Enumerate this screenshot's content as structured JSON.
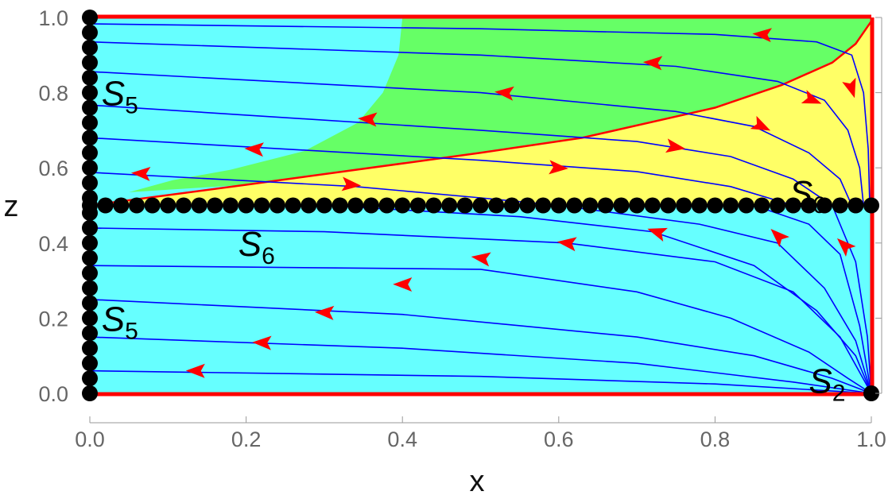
{
  "chart_data": {
    "type": "streamplot",
    "xlabel": "x",
    "ylabel": "z",
    "xlim": [
      0,
      1
    ],
    "ylim": [
      0,
      1
    ],
    "xticks": [
      "0.0",
      "0.2",
      "0.4",
      "0.6",
      "0.8",
      "1.0"
    ],
    "yticks": [
      "0.0",
      "0.2",
      "0.4",
      "0.6",
      "0.8",
      "1.0"
    ],
    "colors": {
      "background": "#66ffff",
      "green": "#66ff66",
      "yellow": "#ffff66",
      "separatrix": "#ff0000",
      "stream": "#0000ff",
      "arrow": "#ff0000",
      "points": "#000000"
    },
    "regions": {
      "separatrix_curve": [
        [
          0,
          0.5
        ],
        [
          0.2,
          0.555
        ],
        [
          0.5,
          0.64
        ],
        [
          0.63,
          0.68
        ],
        [
          0.8,
          0.76
        ],
        [
          0.885,
          0.82
        ],
        [
          0.95,
          0.88
        ],
        [
          0.98,
          0.93
        ],
        [
          1,
          0.99
        ]
      ],
      "green_left_boundary": [
        [
          0.4,
          1.0
        ],
        [
          0.395,
          0.9
        ],
        [
          0.375,
          0.8
        ],
        [
          0.343,
          0.72
        ],
        [
          0.275,
          0.645
        ],
        [
          0.18,
          0.595
        ],
        [
          0.106,
          0.567
        ],
        [
          0.05,
          0.535
        ]
      ]
    },
    "streamlines": [
      [
        [
          0,
          0.983
        ],
        [
          0.5,
          0.97
        ],
        [
          0.8,
          0.955
        ],
        [
          0.93,
          0.935
        ],
        [
          0.975,
          0.9
        ],
        [
          0.99,
          0.8
        ],
        [
          0.996,
          0.65
        ],
        [
          0.998,
          0.5
        ]
      ],
      [
        [
          0,
          0.935
        ],
        [
          0.5,
          0.9
        ],
        [
          0.75,
          0.87
        ],
        [
          0.88,
          0.83
        ],
        [
          0.94,
          0.78
        ],
        [
          0.97,
          0.7
        ],
        [
          0.985,
          0.6
        ],
        [
          0.99,
          0.5
        ]
      ],
      [
        [
          0,
          0.856
        ],
        [
          0.5,
          0.8
        ],
        [
          0.75,
          0.75
        ],
        [
          0.85,
          0.71
        ],
        [
          0.92,
          0.64
        ],
        [
          0.96,
          0.57
        ],
        [
          0.975,
          0.5
        ]
      ],
      [
        [
          0,
          0.767
        ],
        [
          0.5,
          0.7
        ],
        [
          0.7,
          0.67
        ],
        [
          0.82,
          0.63
        ],
        [
          0.9,
          0.57
        ],
        [
          0.95,
          0.5
        ]
      ],
      [
        [
          0,
          0.68
        ],
        [
          0.5,
          0.62
        ],
        [
          0.7,
          0.59
        ],
        [
          0.82,
          0.55
        ],
        [
          0.9,
          0.5
        ]
      ],
      [
        [
          0,
          0.588
        ],
        [
          0.34,
          0.55
        ],
        [
          0.5,
          0.52
        ],
        [
          0.6,
          0.5
        ]
      ],
      [
        [
          0,
          0.44
        ],
        [
          0.3,
          0.43
        ],
        [
          0.61,
          0.4
        ],
        [
          0.8,
          0.35
        ],
        [
          0.9,
          0.27
        ],
        [
          0.96,
          0.15
        ],
        [
          1,
          0
        ]
      ],
      [
        [
          0,
          0.34
        ],
        [
          0.5,
          0.33
        ],
        [
          0.7,
          0.27
        ],
        [
          0.82,
          0.2
        ],
        [
          0.92,
          0.11
        ],
        [
          0.97,
          0.04
        ],
        [
          1,
          0
        ]
      ],
      [
        [
          0,
          0.25
        ],
        [
          0.4,
          0.21
        ],
        [
          0.7,
          0.15
        ],
        [
          0.85,
          0.1
        ],
        [
          0.95,
          0.04
        ],
        [
          1,
          0
        ]
      ],
      [
        [
          0,
          0.15
        ],
        [
          0.4,
          0.12
        ],
        [
          0.7,
          0.08
        ],
        [
          0.9,
          0.03
        ],
        [
          1,
          0
        ]
      ],
      [
        [
          0,
          0.06
        ],
        [
          0.5,
          0.045
        ],
        [
          0.8,
          0.025
        ],
        [
          1,
          0
        ]
      ],
      [
        [
          0.3,
          0.5
        ],
        [
          0.55,
          0.47
        ],
        [
          0.72,
          0.43
        ],
        [
          0.85,
          0.34
        ],
        [
          0.93,
          0.22
        ],
        [
          0.98,
          0.1
        ],
        [
          1,
          0
        ]
      ],
      [
        [
          0.6,
          0.5
        ],
        [
          0.78,
          0.45
        ],
        [
          0.88,
          0.4
        ],
        [
          0.94,
          0.28
        ],
        [
          0.98,
          0.14
        ],
        [
          1,
          0
        ]
      ],
      [
        [
          0.85,
          0.5
        ],
        [
          0.92,
          0.45
        ],
        [
          0.96,
          0.37
        ],
        [
          0.985,
          0.18
        ],
        [
          1,
          0
        ]
      ],
      [
        [
          0.95,
          0.5
        ],
        [
          0.98,
          0.35
        ],
        [
          0.995,
          0.15
        ],
        [
          1,
          0
        ]
      ]
    ],
    "arrows": [
      {
        "x": 0.86,
        "z": 0.955,
        "line": 0,
        "dir": -1
      },
      {
        "x": 0.975,
        "z": 0.81,
        "line": 0,
        "dir": 1
      },
      {
        "x": 0.72,
        "z": 0.88,
        "line": 1,
        "dir": -1
      },
      {
        "x": 0.925,
        "z": 0.78,
        "line": 1,
        "dir": 1
      },
      {
        "x": 0.53,
        "z": 0.8,
        "line": 2,
        "dir": -1
      },
      {
        "x": 0.86,
        "z": 0.71,
        "line": 2,
        "dir": 1
      },
      {
        "x": 0.355,
        "z": 0.73,
        "line": 3,
        "dir": -1
      },
      {
        "x": 0.75,
        "z": 0.655,
        "line": 3,
        "dir": 1
      },
      {
        "x": 0.21,
        "z": 0.65,
        "line": 4,
        "dir": -1
      },
      {
        "x": 0.6,
        "z": 0.6,
        "line": 4,
        "dir": 1
      },
      {
        "x": 0.065,
        "z": 0.585,
        "line": 5,
        "dir": -1
      },
      {
        "x": 0.335,
        "z": 0.555,
        "line": 5,
        "dir": 1
      },
      {
        "x": 0.965,
        "z": 0.395,
        "line": 13,
        "dir": -1
      },
      {
        "x": 0.88,
        "z": 0.42,
        "line": 12,
        "dir": -1
      },
      {
        "x": 0.725,
        "z": 0.43,
        "line": 11,
        "dir": -1
      },
      {
        "x": 0.61,
        "z": 0.4,
        "line": 6,
        "dir": -1
      },
      {
        "x": 0.5,
        "z": 0.36,
        "line": 7,
        "dir": -1
      },
      {
        "x": 0.4,
        "z": 0.29,
        "line": 7,
        "dir": -1
      },
      {
        "x": 0.3,
        "z": 0.215,
        "line": 8,
        "dir": -1
      },
      {
        "x": 0.22,
        "z": 0.135,
        "line": 9,
        "dir": -1
      },
      {
        "x": 0.135,
        "z": 0.06,
        "line": 10,
        "dir": -1
      }
    ],
    "fixed_point_sets": {
      "S5_line": {
        "x": 0,
        "z_from": 0,
        "z_to": 1,
        "count": 26
      },
      "S6_line": {
        "z": 0.5,
        "x_from": 0,
        "x_to": 1,
        "count": 51
      },
      "S2_point": [
        1,
        0
      ]
    },
    "labels": [
      {
        "name": "S",
        "sub": "5",
        "x": 0.015,
        "z": 0.8
      },
      {
        "name": "S",
        "sub": "5",
        "x": 0.015,
        "z": 0.2
      },
      {
        "name": "S",
        "sub": "6",
        "x": 0.19,
        "z": 0.4
      },
      {
        "name": "S",
        "sub": "6",
        "x": 0.895,
        "z": 0.535
      },
      {
        "name": "S",
        "sub": "2",
        "x": 0.92,
        "z": 0.035
      }
    ]
  }
}
